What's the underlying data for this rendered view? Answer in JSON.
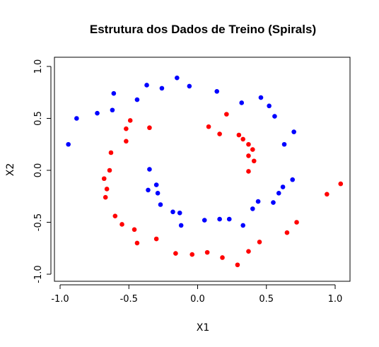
{
  "chart_data": {
    "type": "scatter",
    "title": "Estrutura dos Dados de Treino (Spirals)",
    "xlabel": "X1",
    "ylabel": "X2",
    "xlim": [
      -1.0,
      1.1
    ],
    "ylim": [
      -1.0,
      1.1
    ],
    "xticks": [
      "-1.0",
      "-0.5",
      "0.0",
      "0.5",
      "1.0"
    ],
    "xtick_values": [
      -1.0,
      -0.5,
      0.0,
      0.5,
      1.0
    ],
    "yticks": [
      "-1.0",
      "-0.5",
      "0.0",
      "0.5",
      "1.0"
    ],
    "ytick_values": [
      -1.0,
      -0.5,
      0.0,
      0.5,
      1.0
    ],
    "grid": false,
    "series": [
      {
        "color": "#0000FF",
        "points": [
          [
            -0.94,
            0.25
          ],
          [
            -0.88,
            0.5
          ],
          [
            -0.73,
            0.55
          ],
          [
            -0.61,
            0.74
          ],
          [
            -0.62,
            0.58
          ],
          [
            -0.44,
            0.68
          ],
          [
            -0.37,
            0.82
          ],
          [
            -0.26,
            0.79
          ],
          [
            -0.15,
            0.89
          ],
          [
            -0.06,
            0.81
          ],
          [
            0.14,
            0.76
          ],
          [
            0.32,
            0.65
          ],
          [
            0.46,
            0.7
          ],
          [
            0.52,
            0.62
          ],
          [
            0.56,
            0.52
          ],
          [
            0.7,
            0.37
          ],
          [
            0.63,
            0.25
          ],
          [
            -0.35,
            0.01
          ],
          [
            -0.3,
            -0.14
          ],
          [
            -0.36,
            -0.19
          ],
          [
            -0.29,
            -0.22
          ],
          [
            -0.27,
            -0.33
          ],
          [
            -0.18,
            -0.4
          ],
          [
            -0.13,
            -0.41
          ],
          [
            -0.12,
            -0.53
          ],
          [
            0.05,
            -0.48
          ],
          [
            0.16,
            -0.47
          ],
          [
            0.23,
            -0.47
          ],
          [
            0.33,
            -0.53
          ],
          [
            0.4,
            -0.37
          ],
          [
            0.44,
            -0.3
          ],
          [
            0.55,
            -0.31
          ],
          [
            0.59,
            -0.22
          ],
          [
            0.62,
            -0.16
          ],
          [
            0.69,
            -0.09
          ]
        ]
      },
      {
        "color": "#FF0000",
        "points": [
          [
            -0.49,
            0.48
          ],
          [
            -0.52,
            0.4
          ],
          [
            -0.35,
            0.41
          ],
          [
            -0.52,
            0.28
          ],
          [
            -0.63,
            0.17
          ],
          [
            -0.64,
            0.0
          ],
          [
            -0.68,
            -0.08
          ],
          [
            -0.66,
            -0.18
          ],
          [
            -0.67,
            -0.26
          ],
          [
            -0.6,
            -0.44
          ],
          [
            -0.55,
            -0.52
          ],
          [
            -0.46,
            -0.57
          ],
          [
            -0.44,
            -0.7
          ],
          [
            -0.3,
            -0.66
          ],
          [
            -0.16,
            -0.8
          ],
          [
            -0.04,
            -0.81
          ],
          [
            0.07,
            -0.79
          ],
          [
            0.18,
            -0.84
          ],
          [
            0.29,
            -0.91
          ],
          [
            0.37,
            -0.78
          ],
          [
            0.45,
            -0.69
          ],
          [
            0.65,
            -0.6
          ],
          [
            0.72,
            -0.5
          ],
          [
            0.94,
            -0.23
          ],
          [
            1.04,
            -0.13
          ],
          [
            0.08,
            0.42
          ],
          [
            0.16,
            0.35
          ],
          [
            0.21,
            0.54
          ],
          [
            0.3,
            0.34
          ],
          [
            0.33,
            0.3
          ],
          [
            0.37,
            0.25
          ],
          [
            0.4,
            0.2
          ],
          [
            0.37,
            0.14
          ],
          [
            0.41,
            0.09
          ],
          [
            0.37,
            -0.01
          ]
        ]
      }
    ]
  }
}
